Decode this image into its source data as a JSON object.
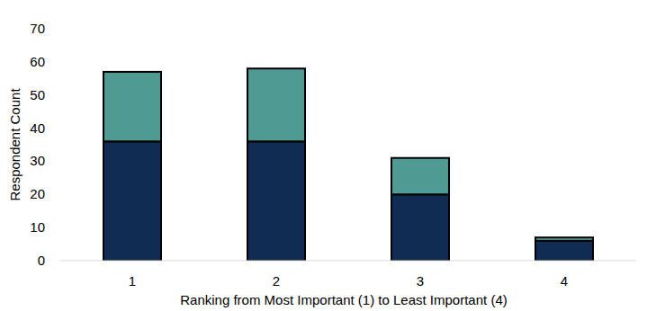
{
  "chart_data": {
    "type": "bar",
    "stacked": true,
    "x_label": "Ranking from Most Important (1) to Least Important (4)",
    "y_label": "Respondent Count",
    "categories": [
      "1",
      "2",
      "3",
      "4"
    ],
    "series": [
      {
        "color": "#112c52",
        "values": [
          36,
          36,
          20,
          6
        ]
      },
      {
        "color": "#4f9b93",
        "values": [
          21,
          22,
          11,
          1
        ]
      }
    ],
    "ylim": [
      0,
      70
    ],
    "yticks": [
      0,
      10,
      20,
      30,
      40,
      50,
      60,
      70
    ],
    "grid": false
  }
}
